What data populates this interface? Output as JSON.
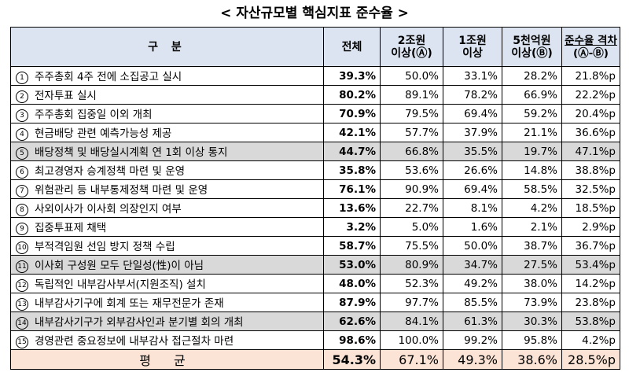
{
  "title": "< 자산규모별 핵심지표 준수율 >",
  "headers": {
    "category": "구 분",
    "total": "전체",
    "over2t_line1": "2조원",
    "over2t_line2": "이상(Ⓐ)",
    "over1t_line1": "1조원",
    "over1t_line2": "이상",
    "over500b_line1": "5천억원",
    "over500b_line2": "이상(Ⓑ)",
    "gap_line1": "준수율 격차",
    "gap_line2": "(Ⓐ-Ⓑ)"
  },
  "rows": [
    {
      "no": "1",
      "label": "주주총회 4주 전에 소집공고 실시",
      "total": "39.3%",
      "over2t": "50.0%",
      "over1t": "33.1%",
      "over500b": "28.2%",
      "gap": "21.8%p",
      "highlight": false
    },
    {
      "no": "2",
      "label": "전자투표 실시",
      "total": "80.2%",
      "over2t": "89.1%",
      "over1t": "78.2%",
      "over500b": "66.9%",
      "gap": "22.2%p",
      "highlight": false
    },
    {
      "no": "3",
      "label": "주주총회 집중일 이외 개최",
      "total": "70.9%",
      "over2t": "79.5%",
      "over1t": "69.4%",
      "over500b": "59.2%",
      "gap": "20.4%p",
      "highlight": false
    },
    {
      "no": "4",
      "label": "현금배당 관련 예측가능성 제공",
      "total": "42.1%",
      "over2t": "57.7%",
      "over1t": "37.9%",
      "over500b": "21.1%",
      "gap": "36.6%p",
      "highlight": false
    },
    {
      "no": "5",
      "label": "배당정책 및 배당실시계획 연 1회 이상 통지",
      "total": "44.7%",
      "over2t": "66.8%",
      "over1t": "35.5%",
      "over500b": "19.7%",
      "gap": "47.1%p",
      "highlight": true
    },
    {
      "no": "6",
      "label": "최고경영자 승계정책 마련 및 운영",
      "total": "35.8%",
      "over2t": "53.6%",
      "over1t": "26.6%",
      "over500b": "14.8%",
      "gap": "38.8%p",
      "highlight": false
    },
    {
      "no": "7",
      "label": "위험관리 등 내부통제정책 마련 및 운영",
      "total": "76.1%",
      "over2t": "90.9%",
      "over1t": "69.4%",
      "over500b": "58.5%",
      "gap": "32.5%p",
      "highlight": false
    },
    {
      "no": "8",
      "label": "사외이사가 이사회 의장인지 여부",
      "total": "13.6%",
      "over2t": "22.7%",
      "over1t": "8.1%",
      "over500b": "4.2%",
      "gap": "18.5%p",
      "highlight": false
    },
    {
      "no": "9",
      "label": "집중투표제 채택",
      "total": "3.2%",
      "over2t": "5.0%",
      "over1t": "1.6%",
      "over500b": "2.1%",
      "gap": "2.9%p",
      "highlight": false
    },
    {
      "no": "10",
      "label": "부적격임원 선임 방지 정책 수립",
      "total": "58.7%",
      "over2t": "75.5%",
      "over1t": "50.0%",
      "over500b": "38.7%",
      "gap": "36.7%p",
      "highlight": false
    },
    {
      "no": "11",
      "label": "이사회 구성원 모두 단일성(性)이 아님",
      "total": "53.0%",
      "over2t": "80.9%",
      "over1t": "34.7%",
      "over500b": "27.5%",
      "gap": "53.4%p",
      "highlight": true
    },
    {
      "no": "12",
      "label": "독립적인 내부감사부서(지원조직) 설치",
      "total": "48.0%",
      "over2t": "52.3%",
      "over1t": "49.2%",
      "over500b": "38.0%",
      "gap": "14.2%p",
      "highlight": false
    },
    {
      "no": "13",
      "label": "내부감사기구에 회계 또는 재무전문가 존재",
      "total": "87.9%",
      "over2t": "97.7%",
      "over1t": "85.5%",
      "over500b": "73.9%",
      "gap": "23.8%p",
      "highlight": false
    },
    {
      "no": "14",
      "label": "내부감사기구가 외부감사인과 분기별 회의 개최",
      "total": "62.6%",
      "over2t": "84.1%",
      "over1t": "61.3%",
      "over500b": "30.3%",
      "gap": "53.8%p",
      "highlight": true
    },
    {
      "no": "15",
      "label": "경영관련 중요정보에 내부감사 접근절차 마련",
      "total": "98.6%",
      "over2t": "100.0%",
      "over1t": "99.2%",
      "over500b": "95.8%",
      "gap": "4.2%p",
      "highlight": false
    }
  ],
  "average": {
    "label": "평 균",
    "total": "54.3%",
    "over2t": "67.1%",
    "over1t": "49.3%",
    "over500b": "38.6%",
    "gap": "28.5%p"
  }
}
